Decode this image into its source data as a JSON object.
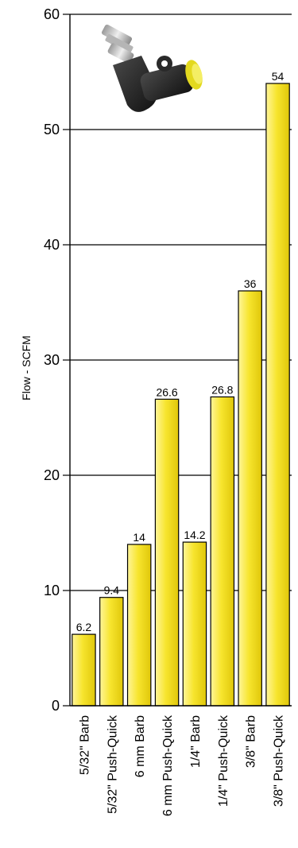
{
  "chart_data": {
    "type": "bar",
    "title": "",
    "xlabel": "",
    "ylabel": "Flow - SCFM",
    "ylim": [
      0,
      60
    ],
    "yticks": [
      0,
      10,
      20,
      30,
      40,
      50,
      60
    ],
    "grid": "horizontal",
    "bar_color": "#f7e52e",
    "categories": [
      "5/32\" Barb",
      "5/32\" Push-Quick",
      "6 mm Barb",
      "6 mm Push-Quick",
      "1/4\" Barb",
      "1/4\" Push-Quick",
      "3/8\" Barb",
      "3/8\" Push-Quick"
    ],
    "values": [
      6.2,
      9.4,
      14,
      26.6,
      14.2,
      26.8,
      36,
      54
    ],
    "data_labels": [
      "6.2",
      "9.4",
      "14",
      "26.6",
      "14.2",
      "26.8",
      "36",
      "54"
    ],
    "image": "elbow-push-fitting-icon"
  }
}
